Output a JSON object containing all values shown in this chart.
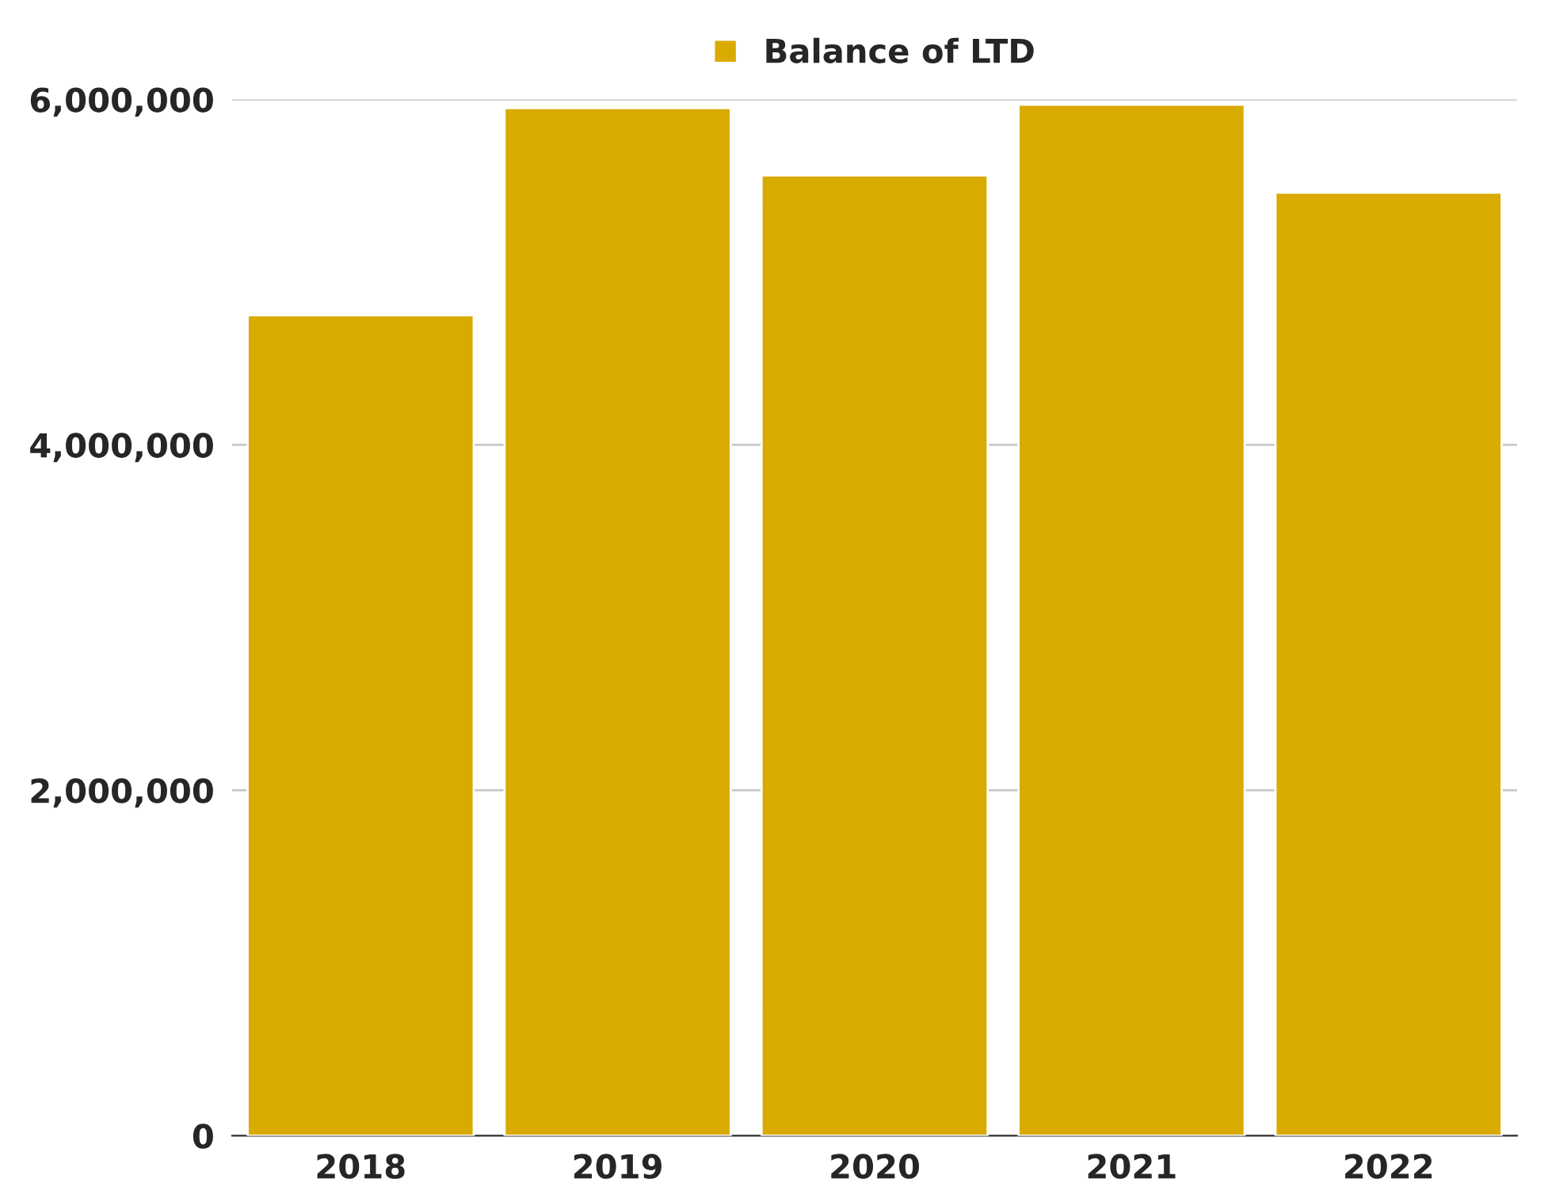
{
  "chart_data": {
    "type": "bar",
    "categories": [
      "2018",
      "2019",
      "2020",
      "2021",
      "2022"
    ],
    "series": [
      {
        "name": "Balance of LTD",
        "color": "#d9aa00",
        "values": [
          4750000,
          5950000,
          5560000,
          5970000,
          5460000
        ]
      }
    ],
    "ylim": [
      0,
      6000000
    ],
    "yticks": [
      {
        "value": 0,
        "label": "0"
      },
      {
        "value": 2000000,
        "label": "2,000,000"
      },
      {
        "value": 4000000,
        "label": "4,000,000"
      },
      {
        "value": 6000000,
        "label": "6,000,000"
      }
    ],
    "grid": "y",
    "legend": "top"
  }
}
